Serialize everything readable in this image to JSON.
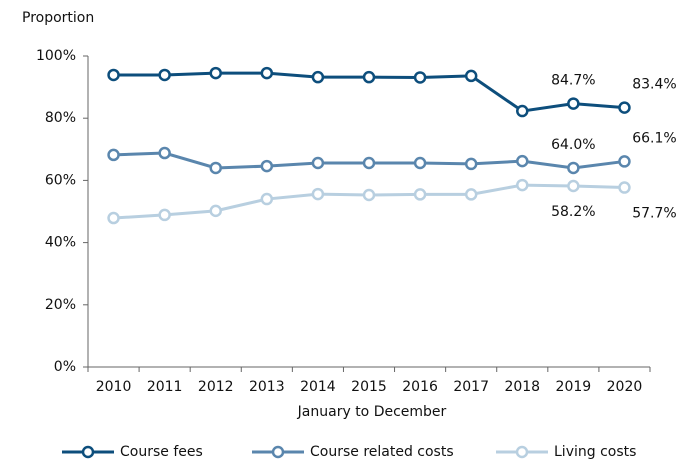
{
  "chart_data": {
    "type": "line",
    "ylabel": "Proportion",
    "xlabel": "January to December",
    "categories": [
      "2010",
      "2011",
      "2012",
      "2013",
      "2014",
      "2015",
      "2016",
      "2017",
      "2018",
      "2019",
      "2020"
    ],
    "series": [
      {
        "name": "Course fees",
        "color": "#0d4e7c",
        "values": [
          93.9,
          93.9,
          94.5,
          94.5,
          93.2,
          93.2,
          93.1,
          93.6,
          82.3,
          84.7,
          83.4
        ],
        "value_labels": [
          null,
          null,
          null,
          null,
          null,
          null,
          null,
          null,
          null,
          "84.7%",
          "83.4%"
        ]
      },
      {
        "name": "Course related costs",
        "color": "#5a86ad",
        "values": [
          68.2,
          68.8,
          64.0,
          64.6,
          65.6,
          65.6,
          65.6,
          65.3,
          66.2,
          64.0,
          66.1
        ],
        "value_labels": [
          null,
          null,
          null,
          null,
          null,
          null,
          null,
          null,
          null,
          "64.0%",
          "66.1%"
        ]
      },
      {
        "name": "Living costs",
        "color": "#b8cfe0",
        "values": [
          47.9,
          48.9,
          50.2,
          54.0,
          55.6,
          55.3,
          55.5,
          55.5,
          58.5,
          58.2,
          57.7
        ],
        "value_labels": [
          null,
          null,
          null,
          null,
          null,
          null,
          null,
          null,
          null,
          "58.2%",
          "57.7%"
        ]
      }
    ],
    "ylim": [
      0,
      100
    ],
    "yticks": [
      {
        "value": 0,
        "label": "0%"
      },
      {
        "value": 20,
        "label": "20%"
      },
      {
        "value": 40,
        "label": "40%"
      },
      {
        "value": 60,
        "label": "60%"
      },
      {
        "value": 80,
        "label": "80%"
      },
      {
        "value": 100,
        "label": "100%"
      }
    ],
    "grid": false,
    "legend": "bottom"
  }
}
